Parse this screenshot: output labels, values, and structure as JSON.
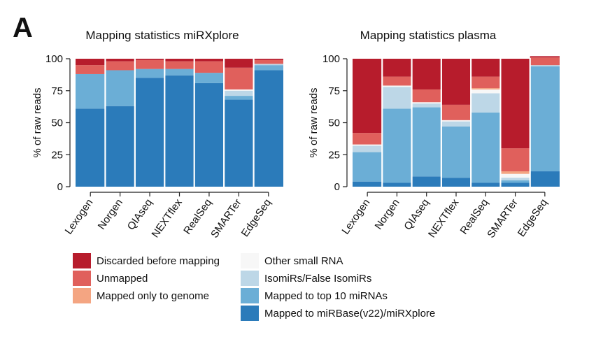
{
  "panel_label": "A",
  "chart_data": [
    {
      "type": "bar",
      "stacked": true,
      "title": "Mapping statistics miRXplore",
      "xlabel": "",
      "ylabel": "% of raw reads",
      "ylim": [
        0,
        100
      ],
      "yticks": [
        0,
        25,
        50,
        75,
        100
      ],
      "grid": false,
      "categories": [
        "Lexogen",
        "Norgen",
        "QIAseq",
        "NEXTflex",
        "RealSeq",
        "SMARTer",
        "EdgeSeq"
      ],
      "series": [
        {
          "name": "Mapped to miRBase(v22)/miRXplore",
          "values": [
            61,
            63,
            85,
            87,
            81,
            68,
            91
          ]
        },
        {
          "name": "Mapped to top 10 miRNAs",
          "values": [
            27,
            28,
            7,
            5,
            8,
            3,
            4
          ]
        },
        {
          "name": "IsomiRs/False IsomiRs",
          "values": [
            0,
            0,
            0,
            0,
            0,
            4,
            1
          ]
        },
        {
          "name": "Other small RNA",
          "values": [
            0,
            0,
            0,
            0,
            0,
            1,
            0
          ]
        },
        {
          "name": "Mapped only to genome",
          "values": [
            0,
            0,
            0,
            0,
            0,
            0,
            0
          ]
        },
        {
          "name": "Unmapped",
          "values": [
            7,
            7,
            7,
            6,
            9,
            17,
            3
          ]
        },
        {
          "name": "Discarded before mapping",
          "values": [
            5,
            2,
            1,
            2,
            2,
            7,
            1
          ]
        }
      ]
    },
    {
      "type": "bar",
      "stacked": true,
      "title": "Mapping statistics plasma",
      "xlabel": "",
      "ylabel": "% of raw reads",
      "ylim": [
        0,
        100
      ],
      "yticks": [
        0,
        25,
        50,
        75,
        100
      ],
      "grid": false,
      "categories": [
        "Lexogen",
        "Norgen",
        "QIAseq",
        "NEXTflex",
        "RealSeq",
        "SMARTer",
        "EdgeSeq"
      ],
      "series": [
        {
          "name": "Mapped to miRBase(v22)/miRXplore",
          "values": [
            4,
            3,
            8,
            7,
            3,
            3,
            12
          ]
        },
        {
          "name": "Mapped to top 10 miRNAs",
          "values": [
            23,
            58,
            54,
            40,
            55,
            2,
            82
          ]
        },
        {
          "name": "IsomiRs/False IsomiRs",
          "values": [
            5,
            17,
            3,
            4,
            15,
            2,
            1
          ]
        },
        {
          "name": "Other small RNA",
          "values": [
            1,
            1,
            1,
            1,
            3,
            3,
            0
          ]
        },
        {
          "name": "Mapped only to genome",
          "values": [
            0,
            0,
            0,
            0,
            1,
            2,
            0
          ]
        },
        {
          "name": "Unmapped",
          "values": [
            9,
            7,
            10,
            12,
            9,
            18,
            6
          ]
        },
        {
          "name": "Discarded before mapping",
          "values": [
            58,
            14,
            24,
            36,
            14,
            70,
            1
          ]
        }
      ]
    }
  ],
  "legend": {
    "left": [
      {
        "label": "Discarded before mapping",
        "color": "#b71c2c"
      },
      {
        "label": "Unmapped",
        "color": "#e0605c"
      },
      {
        "label": "Mapped only to genome",
        "color": "#f4a582"
      }
    ],
    "right": [
      {
        "label": "Other small RNA",
        "color": "#f7f7f7"
      },
      {
        "label": "IsomiRs/False IsomiRs",
        "color": "#bdd7e7"
      },
      {
        "label": "Mapped to top 10 miRNAs",
        "color": "#6baed6"
      },
      {
        "label": "Mapped to miRBase(v22)/miRXplore",
        "color": "#2b7bba"
      }
    ]
  },
  "series_colors": {
    "Mapped to miRBase(v22)/miRXplore": "#2b7bba",
    "Mapped to top 10 miRNAs": "#6baed6",
    "IsomiRs/False IsomiRs": "#bdd7e7",
    "Other small RNA": "#f7f7f7",
    "Mapped only to genome": "#f4a582",
    "Unmapped": "#e0605c",
    "Discarded before mapping": "#b71c2c"
  }
}
